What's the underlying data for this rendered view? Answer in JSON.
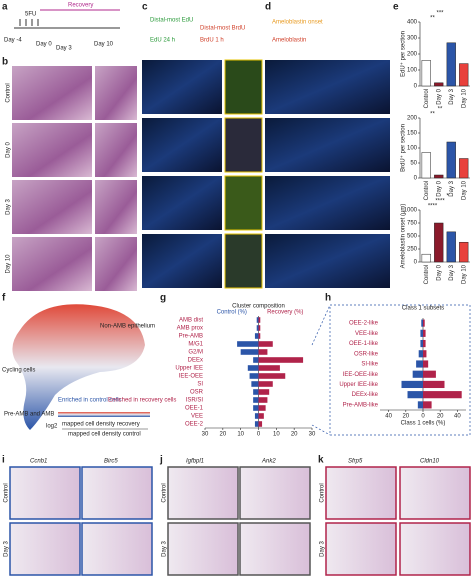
{
  "figure": {
    "panel_letters": [
      "a",
      "b",
      "c",
      "d",
      "e",
      "f",
      "g",
      "h",
      "i",
      "j",
      "k"
    ],
    "timeline": {
      "drug": "5FU",
      "recovery": "Recovery",
      "days": [
        "Day -4",
        "Day 0",
        "Day 3",
        "Day 10"
      ]
    },
    "rows_b": [
      "Control",
      "Day 0",
      "Day 3",
      "Day 10"
    ],
    "c_labels": [
      "Distal-most EdU",
      "Distal-most BrdU",
      "EdU 24 h",
      "BrdU 1 h"
    ],
    "d_labels": [
      "Ameloblastin onset",
      "Ameloblastin"
    ],
    "f_labels": [
      "Non-AMB epithelium",
      "Cycling cells",
      "Pre-AMB and AMB",
      "Enriched in control cells",
      "Enriched in recovery cells",
      "log2",
      "mapped cell density recovery",
      "mapped cell density control"
    ],
    "genes": [
      "Ccnb1",
      "Birc5",
      "Igfbpl1",
      "Ank2",
      "Sfrp5",
      "Cldn10"
    ],
    "rows_ijk": [
      "Control",
      "Day 3"
    ]
  },
  "chart_data": [
    {
      "type": "bar",
      "y_label": "EdU⁺ per section",
      "categories": [
        "Control",
        "Day 0",
        "Day 3",
        "Day 10"
      ],
      "values": [
        160,
        20,
        270,
        140
      ],
      "colors": [
        "#ffffff",
        "#8b1a2b",
        "#2b55a8",
        "#e8413c"
      ],
      "ylim": [
        0,
        400
      ],
      "yticks": [
        0,
        100,
        200,
        300,
        400
      ],
      "annotations": [
        "**",
        "***"
      ]
    },
    {
      "type": "bar",
      "y_label": "BrdU⁺ per section",
      "categories": [
        "Control",
        "Day 0",
        "Day 3",
        "Day 10"
      ],
      "values": [
        85,
        10,
        120,
        65
      ],
      "colors": [
        "#ffffff",
        "#8b1a2b",
        "#2b55a8",
        "#e8413c"
      ],
      "ylim": [
        0,
        200
      ],
      "yticks": [
        0,
        50,
        100,
        150,
        200
      ],
      "annotations": [
        "**",
        "**"
      ]
    },
    {
      "type": "bar",
      "y_label": "Ameloblastin onset (µm)",
      "categories": [
        "Control",
        "Day 0",
        "Day 3",
        "Day 10"
      ],
      "values": [
        150,
        750,
        580,
        380
      ],
      "colors": [
        "#ffffff",
        "#8b1a2b",
        "#2b55a8",
        "#e8413c"
      ],
      "ylim": [
        0,
        1000
      ],
      "yticks": [
        0,
        250,
        500,
        750,
        1000
      ],
      "annotations": [
        "****",
        "****",
        "*"
      ]
    },
    {
      "type": "barh",
      "title": "Cluster composition",
      "categories": [
        "AMB dist",
        "AMB prox",
        "Pre-AMB",
        "M/G1",
        "G2/M",
        "DEEx",
        "Upper IEE",
        "IEE-OEE",
        "SI",
        "OSR",
        "ISR/SI",
        "OEE-1",
        "VEE",
        "OEE-2"
      ],
      "series": [
        {
          "name": "Control (%)",
          "color": "#2b55a8",
          "values": [
            -1,
            -1,
            -2,
            -12,
            -10,
            -3,
            -6,
            -5,
            -4,
            -3,
            -3,
            -3,
            -2,
            -2
          ]
        },
        {
          "name": "Recovery (%)",
          "color": "#b0234a",
          "values": [
            1,
            1,
            1,
            8,
            5,
            25,
            12,
            15,
            8,
            6,
            5,
            4,
            3,
            2
          ]
        }
      ],
      "xlim": [
        -30,
        30
      ],
      "xticks": [
        {
          "value": -30,
          "label": "30"
        },
        {
          "value": -20,
          "label": "20"
        },
        {
          "value": -10,
          "label": "10"
        },
        0,
        10,
        20,
        30
      ]
    },
    {
      "type": "barh",
      "title": "Class 1 subsets",
      "x_label": "Class 1 cells (%)",
      "categories": [
        "OEE-2-like",
        "VEE-like",
        "OEE-1-like",
        "OSR-like",
        "SI-like",
        "IEE-OEE-like",
        "Upper IEE-like",
        "DEEx-like",
        "Pre-AMB-like"
      ],
      "series": [
        {
          "color": "#2b55a8",
          "values": [
            -2,
            -3,
            -3,
            -5,
            -8,
            -12,
            -25,
            -18,
            -6
          ]
        },
        {
          "color": "#b0234a",
          "values": [
            2,
            3,
            3,
            4,
            6,
            15,
            25,
            45,
            10
          ]
        }
      ],
      "xlim": [
        -50,
        50
      ],
      "xticks": [
        {
          "value": -40,
          "label": "40"
        },
        {
          "value": -20,
          "label": "20"
        },
        0,
        20,
        40
      ]
    }
  ]
}
